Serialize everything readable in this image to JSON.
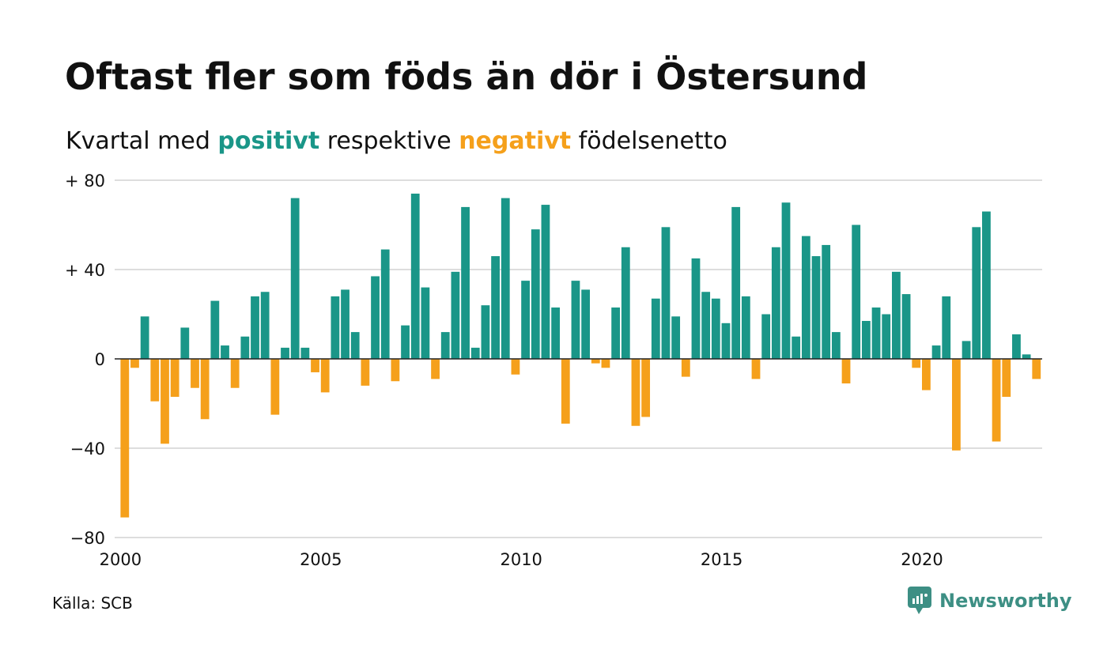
{
  "title": "Oftast fler som föds än dör i Östersund",
  "subtitle": {
    "prefix": "Kvartal med ",
    "positive_word": "positivt",
    "middle": " respektive ",
    "negative_word": "negativt",
    "suffix": " födelsenetto"
  },
  "source": "Källa: SCB",
  "brand": "Newsworthy",
  "colors": {
    "positive": "#1a9688",
    "negative": "#f5a01b",
    "grid": "#dddddd",
    "zero": "#222222",
    "brand": "#3d8f84"
  },
  "chart_data": {
    "type": "bar",
    "x_start": "2000 Q1",
    "ylim": [
      -80,
      80
    ],
    "y_ticks": [
      80,
      40,
      0,
      -40,
      -80
    ],
    "y_tick_labels": [
      "+ 80",
      "+ 40",
      "0",
      "−40",
      "−80"
    ],
    "x_ticks": [
      2000,
      2005,
      2010,
      2015,
      2020
    ],
    "x_tick_labels": [
      "2000",
      "2005",
      "2010",
      "2015",
      "2020"
    ],
    "values": [
      -71,
      -4,
      19,
      -19,
      -38,
      -17,
      14,
      -13,
      -27,
      26,
      6,
      -13,
      10,
      28,
      30,
      -25,
      5,
      72,
      5,
      -6,
      -15,
      28,
      31,
      12,
      -12,
      37,
      49,
      -10,
      15,
      74,
      32,
      -9,
      12,
      39,
      68,
      5,
      24,
      46,
      72,
      -7,
      35,
      58,
      69,
      23,
      -29,
      35,
      31,
      -2,
      -4,
      23,
      50,
      -30,
      -26,
      27,
      59,
      19,
      -8,
      45,
      30,
      27,
      16,
      68,
      28,
      -9,
      20,
      50,
      70,
      10,
      55,
      46,
      51,
      12,
      -11,
      60,
      17,
      23,
      20,
      39,
      29,
      -4,
      -14,
      6,
      28,
      -41,
      8,
      59,
      66,
      -37,
      -17,
      11,
      2,
      -9
    ]
  }
}
